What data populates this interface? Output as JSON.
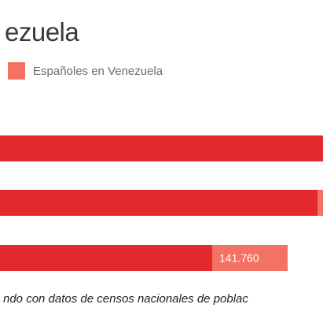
{
  "chart_title": "ezuela",
  "footnote": "ndo con datos de censos nacionales de poblac",
  "colors": {
    "bar_primary": "#e3282e",
    "bar_legend_series": "#f47264",
    "value_label": "#ffffff"
  },
  "chart_data": {
    "type": "bar",
    "orientation": "horizontal",
    "stacked": true,
    "title": "ezuela",
    "legend": [
      {
        "name": "Españoles en Venezuela",
        "color": "#f47264"
      }
    ],
    "series": [
      {
        "color": "#e3282e",
        "values": [
          null,
          null,
          null
        ]
      },
      {
        "name": "Españoles en Venezuela",
        "color": "#f47264",
        "values": [
          null,
          null,
          141760
        ]
      }
    ],
    "data_labels": [
      "",
      "",
      "141.760"
    ]
  }
}
